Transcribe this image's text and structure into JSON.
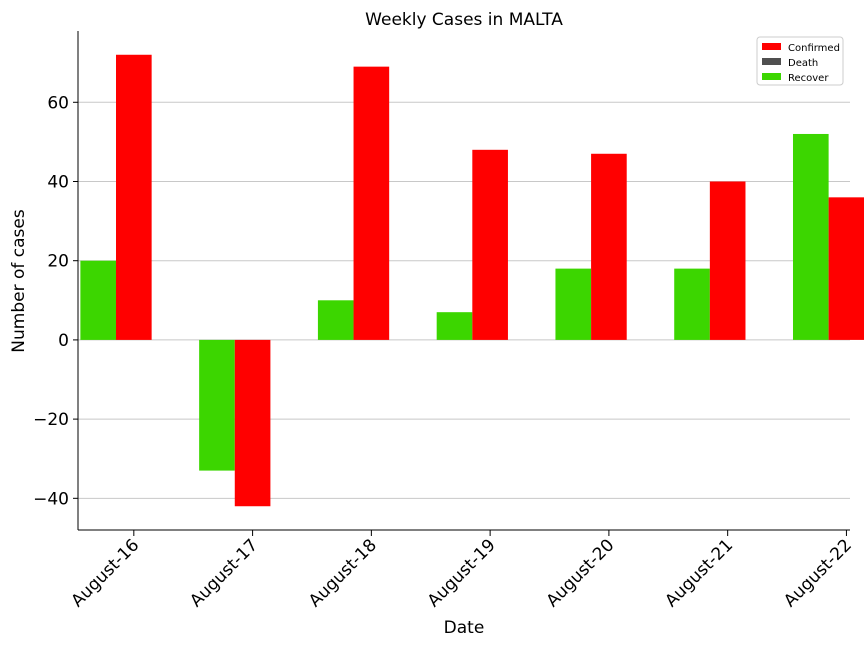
{
  "chart_data": {
    "type": "bar",
    "title": "Weekly Cases in MALTA",
    "xlabel": "Date",
    "ylabel": "Number of cases",
    "categories": [
      "August-16",
      "August-17",
      "August-18",
      "August-19",
      "August-20",
      "August-21",
      "August-22"
    ],
    "ylim": [
      -48,
      78
    ],
    "yticks": [
      -40,
      -20,
      0,
      20,
      40,
      60
    ],
    "ytick_labels": [
      "−40",
      "−20",
      "0",
      "20",
      "40",
      "60"
    ],
    "grid": "horizontal",
    "legend_position": "top-right",
    "series": [
      {
        "name": "Recover",
        "color": "#3cd600",
        "values": [
          20,
          -33,
          10,
          7,
          18,
          18,
          52
        ]
      },
      {
        "name": "Confirmed",
        "color": "#ff0000",
        "values": [
          72,
          -42,
          69,
          48,
          47,
          40,
          36
        ]
      },
      {
        "name": "Death",
        "color": "#4f4f4f",
        "values": [
          0,
          0,
          0,
          0,
          0,
          0,
          1
        ]
      }
    ],
    "legend_order": [
      "Confirmed",
      "Death",
      "Recover"
    ]
  }
}
